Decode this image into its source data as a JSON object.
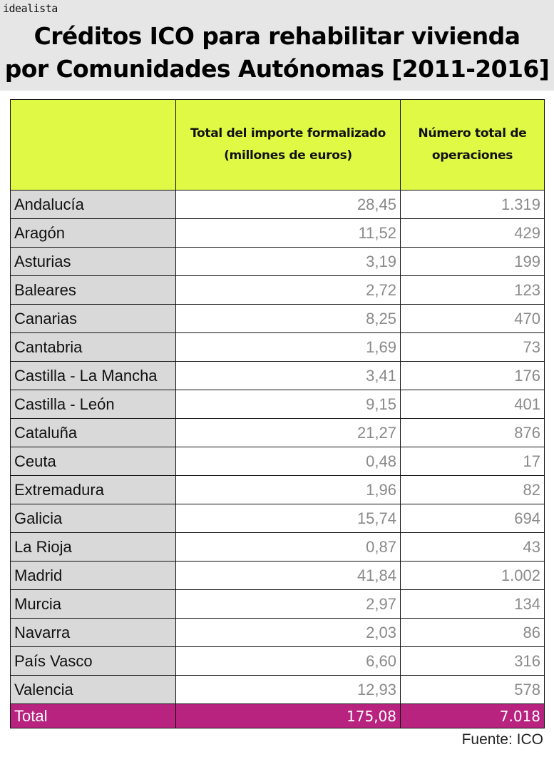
{
  "brand": "idealista",
  "title": {
    "line1": "Créditos ICO para rehabilitar vivienda",
    "line2": "por Comunidades Autónomas [2011-2016]"
  },
  "colors": {
    "title_band": "#e6e6e6",
    "header_bg": "#e0f945",
    "region_bg": "#d9d9d9",
    "total_bg": "#b8237f",
    "value_text": "#8a8a8a"
  },
  "table": {
    "headers": [
      "",
      "Total del importe formalizado (millones de euros)",
      "Número total de operaciones"
    ],
    "header_lines": {
      "col2_line1": "Total del importe formalizado",
      "col2_line2": "(millones de euros)",
      "col3_line1": "Número total de",
      "col3_line2": "operaciones"
    },
    "rows": [
      {
        "region": "Andalucía",
        "importe": "28,45",
        "operaciones": "1.319"
      },
      {
        "region": "Aragón",
        "importe": "11,52",
        "operaciones": "429"
      },
      {
        "region": "Asturias",
        "importe": "3,19",
        "operaciones": "199"
      },
      {
        "region": "Baleares",
        "importe": "2,72",
        "operaciones": "123"
      },
      {
        "region": "Canarias",
        "importe": "8,25",
        "operaciones": "470"
      },
      {
        "region": "Cantabria",
        "importe": "1,69",
        "operaciones": "73"
      },
      {
        "region": "Castilla - La Mancha",
        "importe": "3,41",
        "operaciones": "176"
      },
      {
        "region": "Castilla - León",
        "importe": "9,15",
        "operaciones": "401"
      },
      {
        "region": "Cataluña",
        "importe": "21,27",
        "operaciones": "876"
      },
      {
        "region": "Ceuta",
        "importe": "0,48",
        "operaciones": "17"
      },
      {
        "region": "Extremadura",
        "importe": "1,96",
        "operaciones": "82"
      },
      {
        "region": "Galicia",
        "importe": "15,74",
        "operaciones": "694"
      },
      {
        "region": "La Rioja",
        "importe": "0,87",
        "operaciones": "43"
      },
      {
        "region": "Madrid",
        "importe": "41,84",
        "operaciones": "1.002"
      },
      {
        "region": "Murcia",
        "importe": "2,97",
        "operaciones": "134"
      },
      {
        "region": "Navarra",
        "importe": "2,03",
        "operaciones": "86"
      },
      {
        "region": "País Vasco",
        "importe": "6,60",
        "operaciones": "316"
      },
      {
        "region": "Valencia",
        "importe": "12,93",
        "operaciones": "578"
      }
    ],
    "total": {
      "region": "Total",
      "importe": "175,08",
      "operaciones": "7.018"
    }
  },
  "source": "Fuente: ICO"
}
